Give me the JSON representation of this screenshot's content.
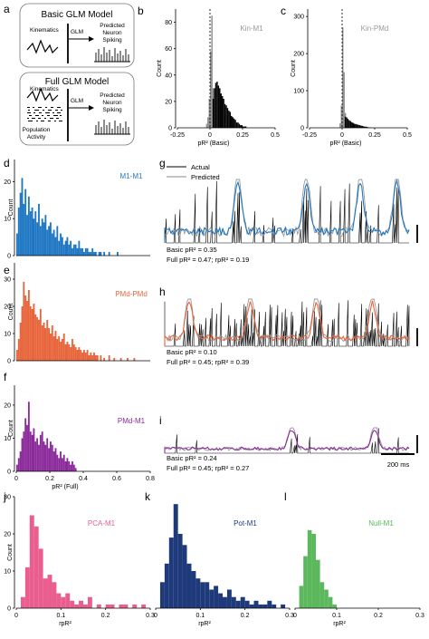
{
  "panel_letters": {
    "a": "a",
    "b": "b",
    "c": "c",
    "d": "d",
    "e": "e",
    "f": "f",
    "g": "g",
    "h": "h",
    "i": "i",
    "j": "j",
    "k": "k",
    "l": "l"
  },
  "schematic": {
    "basic_title": "Basic GLM Model",
    "full_title": "Full GLM Model",
    "kinematics": "Kinematics",
    "glm": "GLM",
    "predicted_line1": "Predicted",
    "predicted_line2": "Neuron",
    "predicted_line3": "Spiking",
    "population_line1": "Population",
    "population_line2": "Activity"
  },
  "traces": {
    "legend_actual": "Actual",
    "legend_predicted": "Predicted",
    "g": {
      "line1": "Basic pR² = 0.35",
      "line2": "Full pR² = 0.47; rpR² = 0.19"
    },
    "h": {
      "line1": "Basic pR² = 0.10",
      "line2": "Full pR² = 0.45; rpR² = 0.39"
    },
    "i": {
      "line1": "Basic pR² = 0.24",
      "line2": "Full pR² = 0.45; rpR² = 0.27"
    },
    "scalebar": "200 ms"
  },
  "chart_data": [
    {
      "id": "b",
      "type": "bar",
      "name": "Kin-M1",
      "color": "#000000",
      "xlabel": "pR² (Basic)",
      "ylabel": "Count",
      "xlim": [
        -0.25,
        0.5
      ],
      "ylim": [
        0,
        90
      ],
      "xticks": [
        "-0.25",
        "0",
        "0.25",
        "0.5"
      ],
      "yticks": [
        "0",
        "20",
        "40",
        "60",
        "80"
      ],
      "series": [
        {
          "name": "",
          "color": "#8c8c8c",
          "x": [
            -0.03,
            -0.02,
            -0.01,
            0,
            0.01,
            0.02
          ],
          "values": [
            3,
            8,
            22,
            58,
            85,
            30
          ]
        },
        {
          "name": "",
          "color": "#000000",
          "x": [
            0.02,
            0.03,
            0.04,
            0.05,
            0.06,
            0.07,
            0.08,
            0.09,
            0.1,
            0.11,
            0.12,
            0.13,
            0.14,
            0.15,
            0.16,
            0.17,
            0.18,
            0.19,
            0.2,
            0.21,
            0.22,
            0.23,
            0.24,
            0.25,
            0.26,
            0.27
          ],
          "values": [
            22,
            30,
            34,
            35,
            32,
            30,
            26,
            24,
            22,
            18,
            17,
            15,
            13,
            12,
            9,
            8,
            7,
            6,
            4,
            4,
            3,
            2,
            2,
            1,
            1,
            1
          ]
        }
      ]
    },
    {
      "id": "c",
      "type": "bar",
      "name": "Kin-PMd",
      "color": "#000000",
      "xlabel": "pR² (Basic)",
      "ylabel": "Count",
      "xlim": [
        -0.25,
        0.5
      ],
      "ylim": [
        0,
        320
      ],
      "xticks": [
        "-0.25",
        "0",
        "0.25",
        "0.5"
      ],
      "yticks": [
        "0",
        "100",
        "200",
        "300"
      ],
      "series": [
        {
          "name": "",
          "color": "#8c8c8c",
          "x": [
            -0.02,
            -0.01,
            0,
            0.01,
            0.02
          ],
          "values": [
            12,
            60,
            270,
            150,
            40
          ]
        },
        {
          "name": "",
          "color": "#000000",
          "x": [
            0.02,
            0.03,
            0.04,
            0.05,
            0.06,
            0.07,
            0.08,
            0.09,
            0.1,
            0.11,
            0.12,
            0.13,
            0.14,
            0.15,
            0.16,
            0.17,
            0.18,
            0.19,
            0.2,
            0.21
          ],
          "values": [
            30,
            28,
            24,
            20,
            18,
            15,
            13,
            11,
            10,
            9,
            8,
            7,
            6,
            5,
            4,
            3,
            3,
            2,
            1,
            1
          ]
        }
      ]
    },
    {
      "id": "d",
      "type": "bar",
      "name": "M1-M1",
      "color": "#1f77c4",
      "xlabel": "",
      "ylabel": "Count",
      "xlim": [
        0,
        0.8
      ],
      "ylim": [
        0,
        26
      ],
      "xticks": [],
      "yticks": [
        "0",
        "10",
        "20"
      ],
      "series": [
        {
          "name": "",
          "color": "#1f77c4",
          "x": [
            0,
            0.01,
            0.02,
            0.03,
            0.04,
            0.05,
            0.06,
            0.07,
            0.08,
            0.09,
            0.1,
            0.11,
            0.12,
            0.13,
            0.14,
            0.15,
            0.16,
            0.17,
            0.18,
            0.19,
            0.2,
            0.21,
            0.22,
            0.23,
            0.24,
            0.25,
            0.26,
            0.27,
            0.28,
            0.29,
            0.3,
            0.31,
            0.32,
            0.33,
            0.34,
            0.35,
            0.36,
            0.37,
            0.38,
            0.39,
            0.4,
            0.41,
            0.42,
            0.43,
            0.44,
            0.45,
            0.46,
            0.47,
            0.48,
            0.49,
            0.5,
            0.52,
            0.55,
            0.58,
            0.6
          ],
          "values": [
            6,
            13,
            17,
            21,
            14,
            18,
            11,
            16,
            12,
            13,
            10,
            12,
            9,
            14,
            8,
            10,
            9,
            11,
            7,
            8,
            9,
            6,
            7,
            5,
            8,
            4,
            6,
            5,
            3,
            4,
            5,
            3,
            4,
            2,
            3,
            3,
            2,
            4,
            2,
            2,
            1,
            2,
            2,
            1,
            1,
            2,
            1,
            1,
            0,
            1,
            1,
            1,
            1,
            0,
            1
          ]
        }
      ]
    },
    {
      "id": "e",
      "type": "bar",
      "name": "PMd-PMd",
      "color": "#e8643a",
      "xlabel": "",
      "ylabel": "Count",
      "xlim": [
        0,
        0.8
      ],
      "ylim": [
        0,
        36
      ],
      "xticks": [],
      "yticks": [
        "0",
        "10",
        "20",
        "30"
      ],
      "series": [
        {
          "name": "",
          "color": "#e8643a",
          "x": [
            0,
            0.01,
            0.02,
            0.03,
            0.04,
            0.05,
            0.06,
            0.07,
            0.08,
            0.09,
            0.1,
            0.11,
            0.12,
            0.13,
            0.14,
            0.15,
            0.16,
            0.17,
            0.18,
            0.19,
            0.2,
            0.21,
            0.22,
            0.23,
            0.24,
            0.25,
            0.26,
            0.27,
            0.28,
            0.29,
            0.3,
            0.31,
            0.32,
            0.33,
            0.34,
            0.35,
            0.36,
            0.37,
            0.38,
            0.39,
            0.4,
            0.41,
            0.42,
            0.43,
            0.44,
            0.45,
            0.46,
            0.47,
            0.48,
            0.5,
            0.52,
            0.55,
            0.58,
            0.62,
            0.66,
            0.7
          ],
          "values": [
            4,
            8,
            14,
            20,
            29,
            24,
            22,
            26,
            20,
            19,
            21,
            17,
            16,
            15,
            19,
            13,
            14,
            12,
            15,
            12,
            10,
            13,
            9,
            11,
            8,
            9,
            7,
            8,
            10,
            6,
            7,
            6,
            5,
            8,
            6,
            5,
            4,
            5,
            4,
            3,
            4,
            3,
            4,
            2,
            3,
            2,
            3,
            2,
            2,
            2,
            1,
            2,
            1,
            1,
            1,
            1
          ]
        }
      ]
    },
    {
      "id": "f",
      "type": "bar",
      "name": "PMd-M1",
      "color": "#8b2a9a",
      "xlabel": "pR² (Full)",
      "ylabel": "Count",
      "xlim": [
        0,
        0.8
      ],
      "ylim": [
        0,
        26
      ],
      "xticks": [
        "0",
        "0.2",
        "0.4",
        "0.6",
        "0.8"
      ],
      "yticks": [
        "0",
        "10",
        "20"
      ],
      "series": [
        {
          "name": "",
          "color": "#8b2a9a",
          "x": [
            0,
            0.01,
            0.02,
            0.03,
            0.04,
            0.05,
            0.06,
            0.07,
            0.08,
            0.09,
            0.1,
            0.11,
            0.12,
            0.13,
            0.14,
            0.15,
            0.16,
            0.17,
            0.18,
            0.19,
            0.2,
            0.21,
            0.22,
            0.23,
            0.24,
            0.25,
            0.26,
            0.27,
            0.28,
            0.29,
            0.3,
            0.31,
            0.32,
            0.33,
            0.34,
            0.35
          ],
          "values": [
            2,
            4,
            6,
            10,
            12,
            16,
            14,
            21,
            12,
            11,
            13,
            9,
            10,
            8,
            11,
            12,
            9,
            8,
            10,
            7,
            9,
            8,
            6,
            7,
            5,
            4,
            6,
            4,
            5,
            3,
            4,
            3,
            2,
            3,
            2,
            1
          ]
        }
      ]
    },
    {
      "id": "j",
      "type": "bar",
      "name": "PCA-M1",
      "color": "#ea5e8f",
      "xlabel": "rpR²",
      "ylabel": "Count",
      "xlim": [
        0,
        0.3
      ],
      "ylim": [
        0,
        30
      ],
      "xticks": [
        "0",
        "0.1",
        "0.2",
        "0.3"
      ],
      "yticks": [
        "0",
        "10",
        "20",
        "30"
      ],
      "series": [
        {
          "name": "",
          "color": "#ea5e8f",
          "x": [
            0.01,
            0.02,
            0.03,
            0.04,
            0.05,
            0.06,
            0.07,
            0.08,
            0.09,
            0.1,
            0.11,
            0.12,
            0.13,
            0.14,
            0.15,
            0.16,
            0.17,
            0.18,
            0.19,
            0.2,
            0.21,
            0.22,
            0.23,
            0.24,
            0.25,
            0.26,
            0.27,
            0.28
          ],
          "values": [
            3,
            11,
            25,
            22,
            16,
            8,
            9,
            7,
            4,
            3,
            4,
            2,
            1,
            2,
            1,
            3,
            0,
            1,
            0,
            1,
            1,
            0,
            1,
            1,
            0,
            1,
            0,
            1
          ]
        }
      ]
    },
    {
      "id": "k",
      "type": "bar",
      "name": "Pot-M1",
      "color": "#1f3a7a",
      "xlabel": "rpR²",
      "ylabel": "",
      "xlim": [
        0,
        0.3
      ],
      "ylim": [
        0,
        30
      ],
      "xticks": [
        "0",
        "0.1",
        "0.2",
        "0.3"
      ],
      "yticks": [],
      "series": [
        {
          "name": "",
          "color": "#1f3a7a",
          "x": [
            0.01,
            0.02,
            0.03,
            0.04,
            0.05,
            0.06,
            0.07,
            0.08,
            0.09,
            0.1,
            0.11,
            0.12,
            0.13,
            0.14,
            0.15,
            0.16,
            0.17,
            0.18,
            0.19,
            0.2,
            0.21,
            0.22,
            0.23,
            0.24,
            0.25,
            0.26,
            0.27,
            0.28
          ],
          "values": [
            7,
            12,
            19,
            28,
            20,
            17,
            12,
            10,
            8,
            7,
            7,
            5,
            6,
            4,
            3,
            5,
            3,
            2,
            3,
            2,
            1,
            2,
            1,
            1,
            2,
            1,
            0,
            1
          ]
        }
      ]
    },
    {
      "id": "l",
      "type": "bar",
      "name": "Null-M1",
      "color": "#5cb85c",
      "xlabel": "rpR²",
      "ylabel": "",
      "xlim": [
        0,
        0.3
      ],
      "ylim": [
        0,
        30
      ],
      "xticks": [
        "0",
        "0.1",
        "0.2",
        "0.3"
      ],
      "yticks": [],
      "series": [
        {
          "name": "",
          "color": "#5cb85c",
          "x": [
            0.01,
            0.02,
            0.03,
            0.04,
            0.05,
            0.06,
            0.07,
            0.08,
            0.09
          ],
          "values": [
            6,
            14,
            21,
            20,
            13,
            7,
            5,
            3,
            1
          ]
        }
      ]
    }
  ]
}
